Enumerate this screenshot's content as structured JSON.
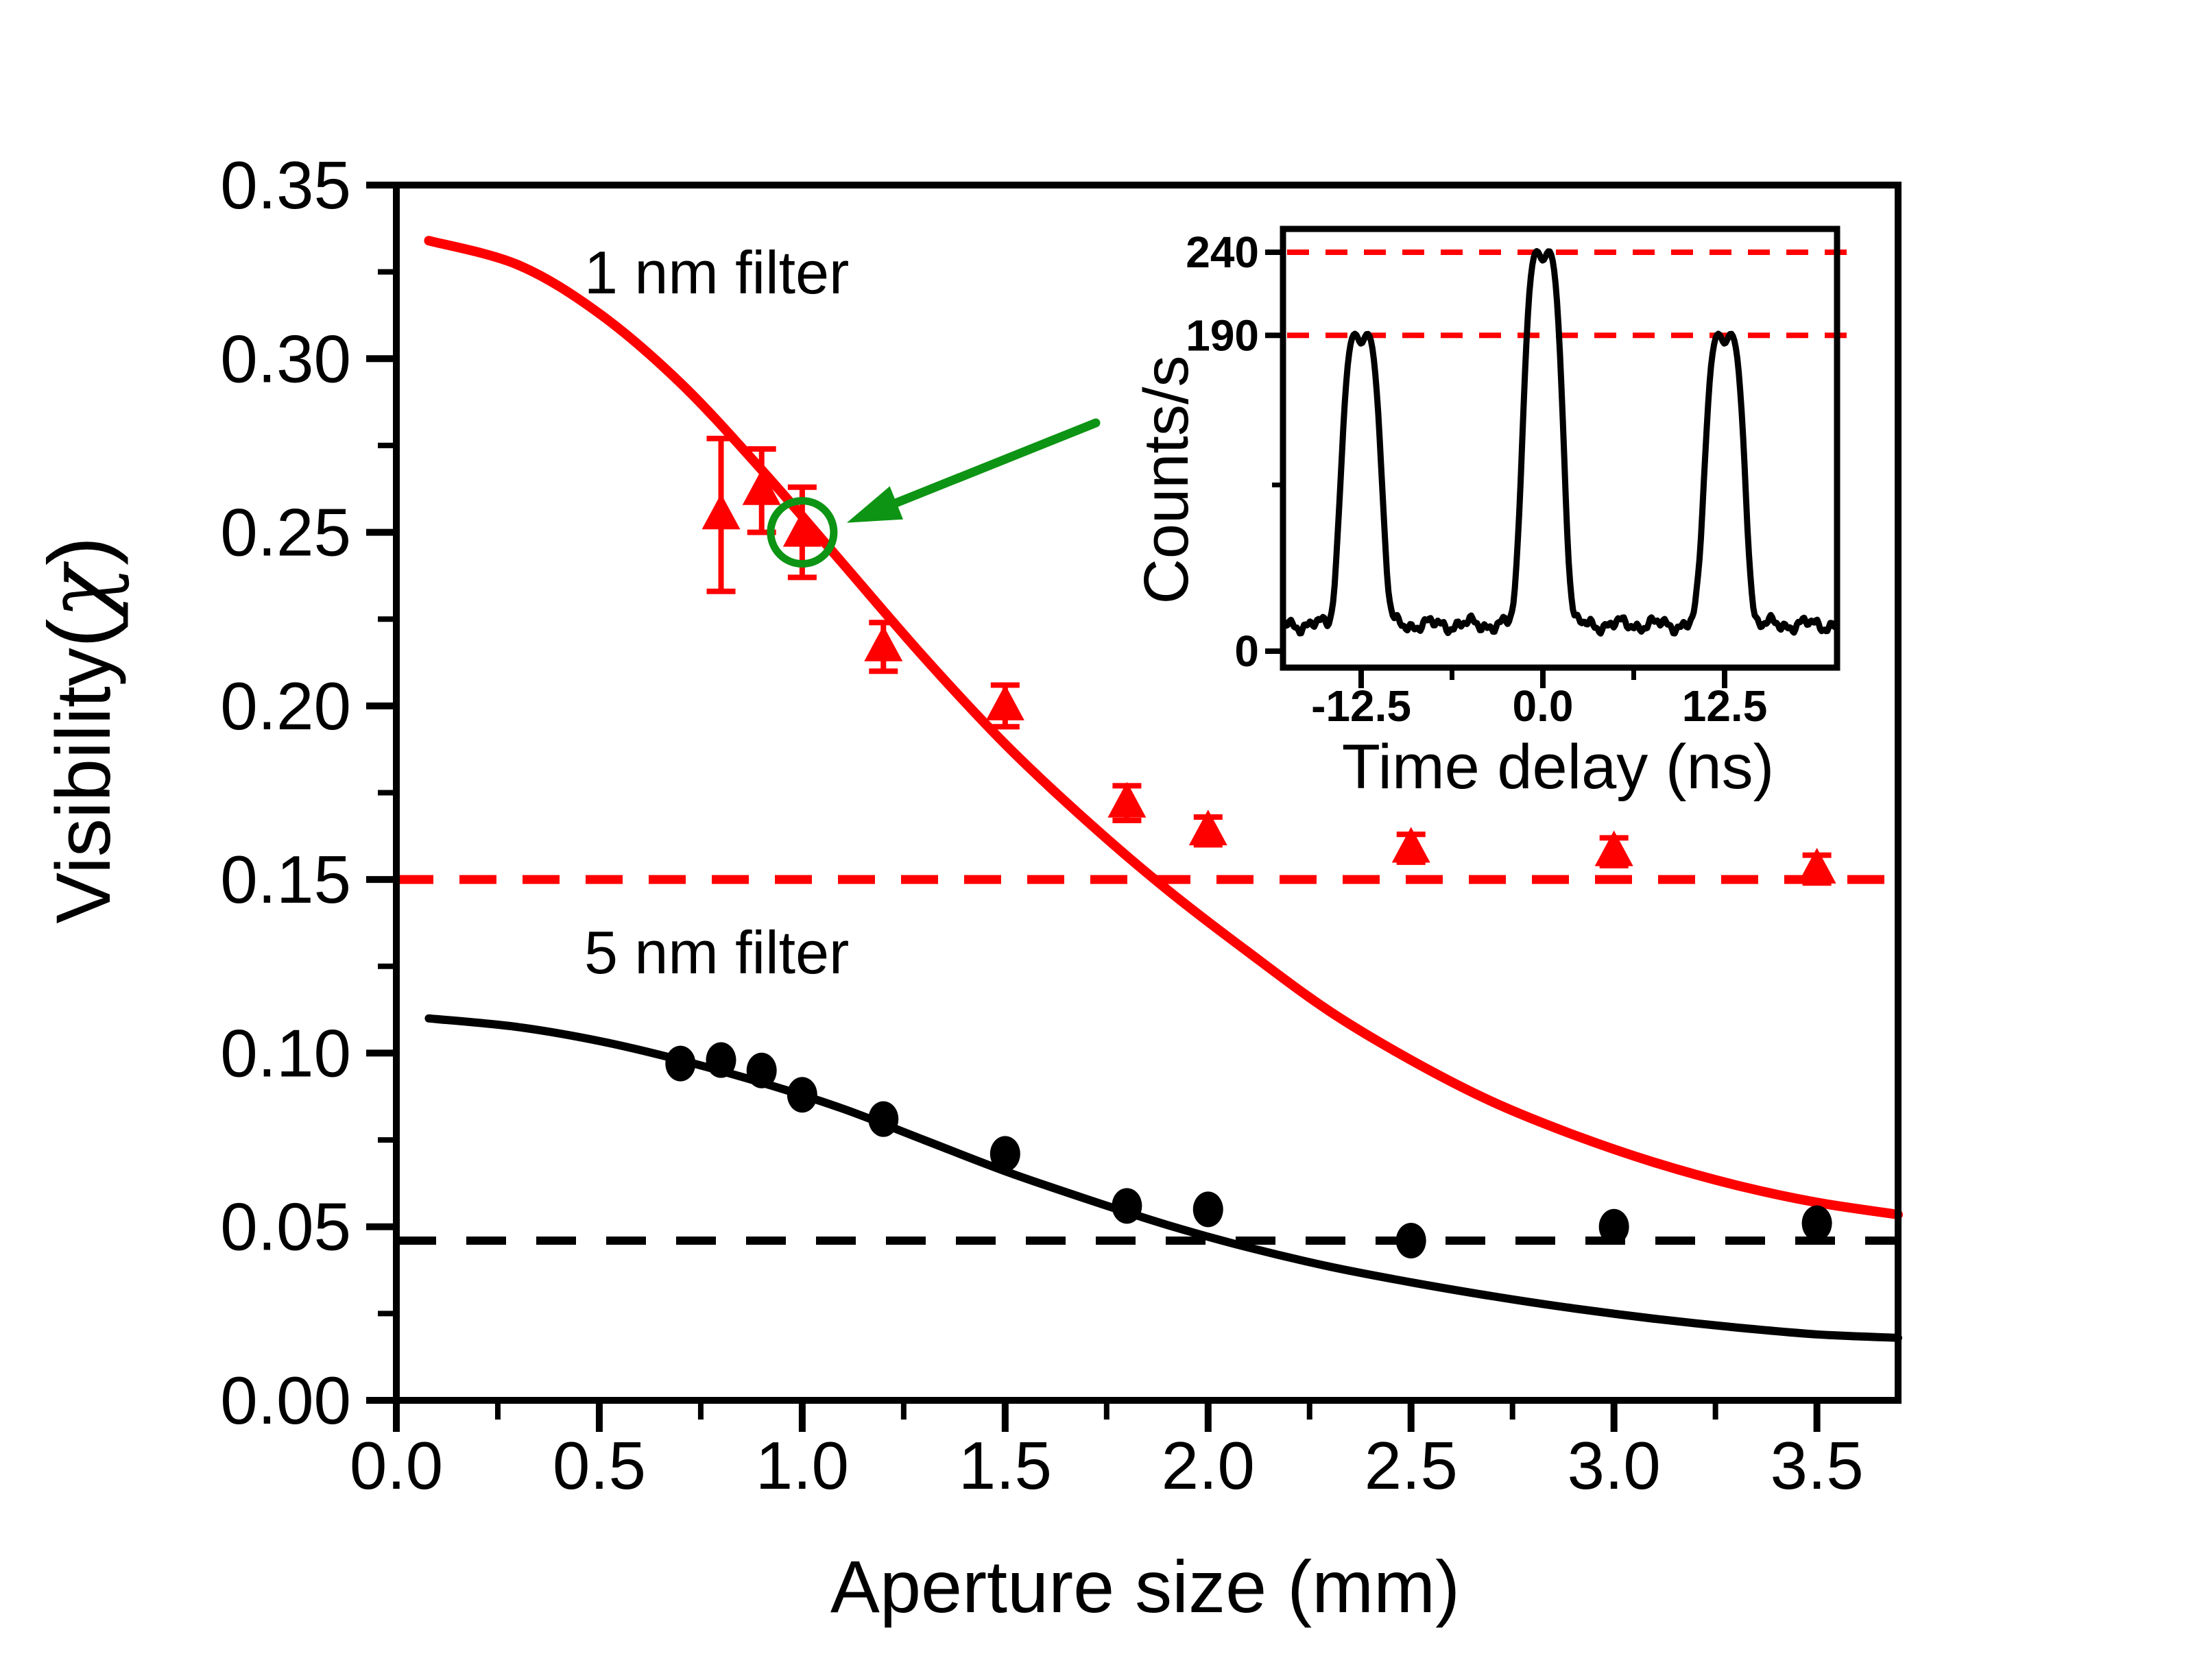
{
  "colors": {
    "red": "#ff0000",
    "black": "#000000",
    "green": "#0d9414",
    "background": "#ffffff"
  },
  "labels": {
    "series_red": "1 nm filter",
    "series_black": "5 nm filter",
    "main_xlabel": "Aperture size (mm)",
    "main_ylabel_prefix": "Visibility",
    "main_ylabel_open": "(",
    "main_ylabel_chi": "χ",
    "main_ylabel_close": ")",
    "inset_xlabel": "Time delay (ns)",
    "inset_ylabel": "Counts/s"
  },
  "chart_data": [
    {
      "id": "main",
      "type": "scatter",
      "title": "",
      "xlabel": "Aperture size (mm)",
      "ylabel": "Visibility(χ)",
      "xlim": [
        0,
        3.7
      ],
      "ylim": [
        0,
        0.35
      ],
      "grid": false,
      "xticks": {
        "major": [
          0.0,
          0.5,
          1.0,
          1.5,
          2.0,
          2.5,
          3.0,
          3.5
        ],
        "labels": [
          "0.0",
          "0.5",
          "1.0",
          "1.5",
          "2.0",
          "2.5",
          "3.0",
          "3.5"
        ],
        "minor": [
          0.25,
          0.75,
          1.25,
          1.75,
          2.25,
          2.75,
          3.25
        ]
      },
      "yticks": {
        "major": [
          0.0,
          0.05,
          0.1,
          0.15,
          0.2,
          0.25,
          0.3,
          0.35
        ],
        "labels": [
          "0.00",
          "0.05",
          "0.10",
          "0.15",
          "0.20",
          "0.25",
          "0.30",
          "0.35"
        ],
        "minor": [
          0.025,
          0.075,
          0.125,
          0.175,
          0.225,
          0.275,
          0.325
        ]
      },
      "series": [
        {
          "name": "1 nm filter",
          "kind": "scatter",
          "marker": "triangle",
          "color": "#ff0000",
          "x": [
            0.8,
            0.9,
            1.0,
            1.2,
            1.5,
            1.8,
            2.0,
            2.5,
            3.0,
            3.5
          ],
          "y": [
            0.255,
            0.262,
            0.25,
            0.217,
            0.2,
            0.172,
            0.164,
            0.159,
            0.158,
            0.153
          ],
          "yerr": [
            0.022,
            0.012,
            0.013,
            0.007,
            0.006,
            0.005,
            0.004,
            0.004,
            0.004,
            0.004
          ]
        },
        {
          "name": "5 nm filter",
          "kind": "scatter",
          "marker": "circle",
          "color": "#000000",
          "x": [
            0.7,
            0.8,
            0.9,
            1.0,
            1.2,
            1.5,
            1.8,
            2.0,
            2.5,
            3.0,
            3.5
          ],
          "y": [
            0.097,
            0.098,
            0.095,
            0.088,
            0.081,
            0.071,
            0.056,
            0.055,
            0.046,
            0.05,
            0.051
          ]
        },
        {
          "name": "1 nm filter fit",
          "kind": "line",
          "color": "#ff0000",
          "x": [
            0.08,
            0.3,
            0.5,
            0.7,
            0.9,
            1.1,
            1.3,
            1.5,
            1.7,
            1.9,
            2.1,
            2.3,
            2.5,
            2.7,
            2.9,
            3.1,
            3.3,
            3.5,
            3.7
          ],
          "y": [
            0.334,
            0.327,
            0.313,
            0.293,
            0.268,
            0.241,
            0.214,
            0.189,
            0.167,
            0.147,
            0.129,
            0.112,
            0.098,
            0.086,
            0.0765,
            0.0685,
            0.062,
            0.057,
            0.0535
          ]
        },
        {
          "name": "5 nm filter fit",
          "kind": "line",
          "color": "#000000",
          "x": [
            0.08,
            0.3,
            0.5,
            0.7,
            0.9,
            1.1,
            1.3,
            1.5,
            1.7,
            1.9,
            2.1,
            2.3,
            2.5,
            2.7,
            2.9,
            3.1,
            3.3,
            3.5,
            3.7
          ],
          "y": [
            0.11,
            0.1075,
            0.1035,
            0.098,
            0.0915,
            0.084,
            0.075,
            0.066,
            0.058,
            0.0505,
            0.044,
            0.0385,
            0.034,
            0.03,
            0.0265,
            0.0235,
            0.021,
            0.019,
            0.018
          ]
        },
        {
          "name": "1 nm asymptote",
          "kind": "hline",
          "color": "#ff0000",
          "style": "dashed",
          "y": 0.15
        },
        {
          "name": "5 nm asymptote",
          "kind": "hline",
          "color": "#000000",
          "style": "dashed",
          "y": 0.046
        }
      ],
      "annotations": {
        "circled_point": {
          "series": "1 nm filter",
          "x": 1.0,
          "y": 0.25
        },
        "arrow_from_inset": true
      }
    },
    {
      "id": "inset",
      "type": "line",
      "title": "",
      "xlabel": "Time delay (ns)",
      "ylabel": "Counts/s",
      "xlim": [
        -17.9,
        20.2
      ],
      "ylim": [
        -10,
        254
      ],
      "grid": false,
      "xticks": {
        "major": [
          -12.5,
          0.0,
          12.5
        ],
        "labels": [
          "-12.5",
          "0.0",
          "12.5"
        ],
        "minor": [
          -6.25,
          6.25
        ]
      },
      "yticks": {
        "major": [
          240,
          190,
          0
        ],
        "labels": [
          "240",
          "190",
          "0"
        ],
        "minor": [
          100
        ]
      },
      "dashed_levels": [
        240,
        190
      ],
      "curve": {
        "baseline": 16,
        "peaks": [
          {
            "center": -12.5,
            "top": 190
          },
          {
            "center": 0.0,
            "top": 240
          },
          {
            "center": 12.5,
            "top": 190
          }
        ],
        "peak_width": 1.55,
        "peak_shape_exponent": 4,
        "notch_depth": 8,
        "notch_width": 0.3
      }
    }
  ]
}
